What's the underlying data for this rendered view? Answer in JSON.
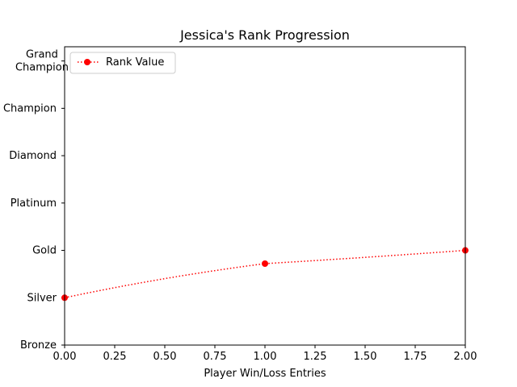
{
  "chart_data": {
    "type": "line",
    "title": "Jessica's Rank Progression",
    "xlabel": "Player Win/Loss Entries",
    "ylabel": "",
    "xlim": [
      0,
      2
    ],
    "ylim": [
      0,
      6.3
    ],
    "x_ticks": [
      0,
      0.25,
      0.5,
      0.75,
      1,
      1.25,
      1.5,
      1.75,
      2
    ],
    "x_tick_labels": [
      "0.00",
      "0.25",
      "0.50",
      "0.75",
      "1.00",
      "1.25",
      "1.50",
      "1.75",
      "2.00"
    ],
    "y_ticks": [
      0,
      1,
      2,
      3,
      4,
      5,
      6
    ],
    "y_tick_labels": [
      "Bronze",
      "Silver",
      "Gold",
      "Platinum",
      "Diamond",
      "Champion",
      "Grand\nChampion"
    ],
    "grid": false,
    "legend_position": "upper left",
    "series": [
      {
        "name": "Rank Value",
        "color": "#ff0000",
        "line_style": "dotted",
        "marker": "circle",
        "x": [
          0,
          1,
          2
        ],
        "y": [
          1,
          1.72,
          2
        ]
      }
    ]
  }
}
